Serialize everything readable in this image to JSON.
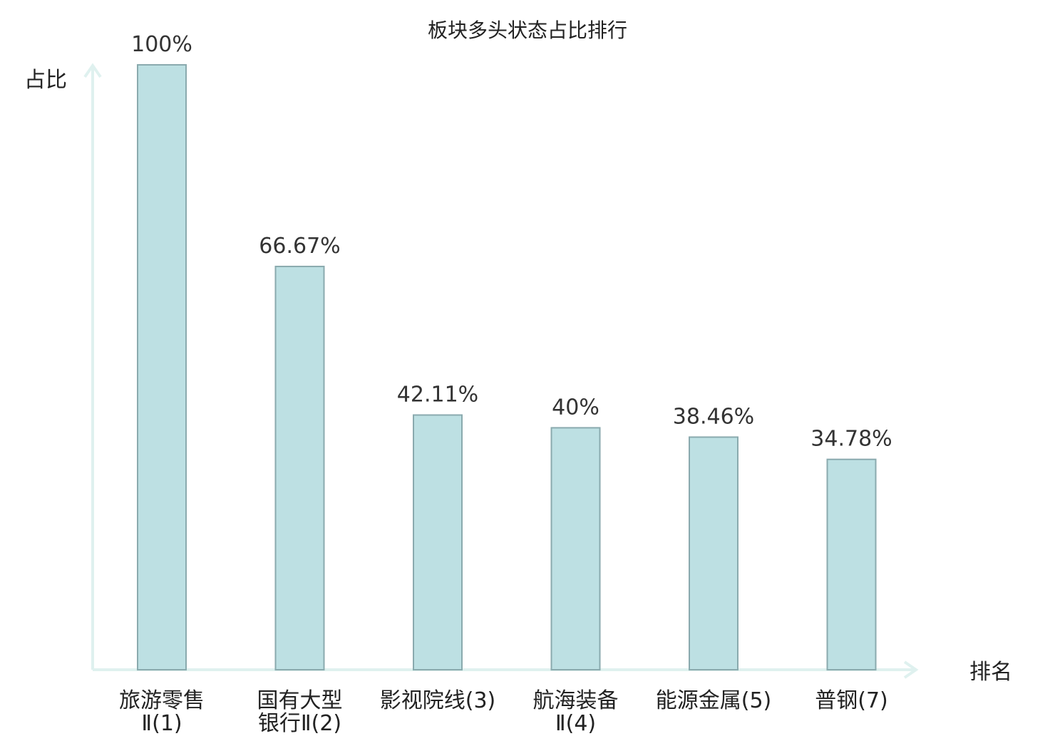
{
  "chart_data": {
    "type": "bar",
    "title": "板块多头状态占比排行",
    "ylabel": "占比",
    "xlabel": "排名",
    "ylim": [
      0,
      100
    ],
    "grid": false,
    "categories": [
      {
        "lines": [
          "旅游零售",
          "Ⅱ(1)"
        ],
        "highlight": false
      },
      {
        "lines": [
          "国有大型",
          "银行Ⅱ(2)"
        ],
        "highlight": false
      },
      {
        "lines": [
          "影视院线(3)"
        ],
        "highlight": false
      },
      {
        "lines": [
          "航海装备",
          "Ⅱ(4)"
        ],
        "highlight": false
      },
      {
        "lines": [
          "能源金属(5)"
        ],
        "highlight": false
      },
      {
        "lines": [
          "普钢(7)"
        ],
        "highlight": true
      }
    ],
    "values": [
      100,
      66.67,
      42.11,
      40,
      38.46,
      34.78
    ],
    "value_labels": [
      "100%",
      "66.67%",
      "42.11%",
      "40%",
      "38.46%",
      "34.78%"
    ],
    "colors": {
      "bar_fill": "#bde0e3",
      "bar_stroke": "#8aaaae",
      "axis": "#dff1ef",
      "highlight_text": "#e0141e",
      "text": "#222222"
    }
  }
}
